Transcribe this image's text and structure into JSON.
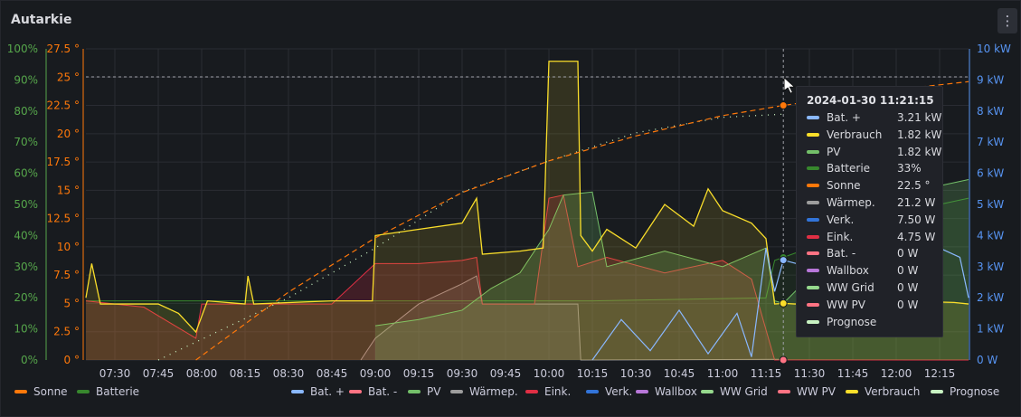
{
  "panel": {
    "title": "Autarkie",
    "menu_icon": "kebab-menu-icon"
  },
  "chart_data": {
    "type": "area",
    "title": "Autarkie",
    "x": {
      "range": [
        "07:20",
        "12:25"
      ],
      "tick_labels": [
        "07:30",
        "07:45",
        "08:00",
        "08:15",
        "08:30",
        "08:45",
        "09:00",
        "09:15",
        "09:30",
        "09:45",
        "10:00",
        "10:15",
        "10:30",
        "10:45",
        "11:00",
        "11:15",
        "11:30",
        "11:45",
        "12:00",
        "12:15"
      ]
    },
    "axes": {
      "percent": {
        "side": "left-outer",
        "color": "#56a64b",
        "range": [
          0,
          100
        ],
        "ticks": [
          "0%",
          "10%",
          "20%",
          "30%",
          "40%",
          "50%",
          "60%",
          "70%",
          "80%",
          "90%",
          "100%"
        ]
      },
      "degrees": {
        "side": "left-inner",
        "color": "#ff780a",
        "range": [
          0,
          27.5
        ],
        "ticks": [
          "0 °",
          "2.5 °",
          "5 °",
          "7.5 °",
          "10 °",
          "12.5 °",
          "15 °",
          "17.5 °",
          "20 °",
          "22.5 °",
          "25 °",
          "27.5 °"
        ]
      },
      "power": {
        "side": "right",
        "color": "#5794f2",
        "range": [
          0,
          10
        ],
        "ticks": [
          "0 W",
          "1 kW",
          "2 kW",
          "3 kW",
          "4 kW",
          "5 kW",
          "6 kW",
          "7 kW",
          "8 kW",
          "9 kW",
          "10 kW"
        ]
      }
    },
    "grid": true,
    "legend_placement": "bottom",
    "series": [
      {
        "name": "Verbrauch",
        "unit": "kW",
        "color": "#fade2a",
        "points": [
          [
            "07:20",
            2.0
          ],
          [
            "07:22",
            3.1
          ],
          [
            "07:25",
            1.8
          ],
          [
            "07:45",
            1.8
          ],
          [
            "07:52",
            1.5
          ],
          [
            "07:58",
            0.9
          ],
          [
            "08:02",
            1.9
          ],
          [
            "08:15",
            1.8
          ],
          [
            "08:16",
            2.7
          ],
          [
            "08:18",
            1.8
          ],
          [
            "08:45",
            1.9
          ],
          [
            "08:59",
            1.9
          ],
          [
            "09:00",
            4.0
          ],
          [
            "09:15",
            4.2
          ],
          [
            "09:30",
            4.4
          ],
          [
            "09:35",
            5.2
          ],
          [
            "09:37",
            3.4
          ],
          [
            "09:50",
            3.5
          ],
          [
            "09:58",
            3.6
          ],
          [
            "10:00",
            9.6
          ],
          [
            "10:10",
            9.6
          ],
          [
            "10:11",
            4.0
          ],
          [
            "10:15",
            3.5
          ],
          [
            "10:20",
            4.2
          ],
          [
            "10:30",
            3.6
          ],
          [
            "10:40",
            5.0
          ],
          [
            "10:50",
            4.3
          ],
          [
            "10:55",
            5.5
          ],
          [
            "11:00",
            4.8
          ],
          [
            "11:10",
            4.4
          ],
          [
            "11:15",
            3.9
          ],
          [
            "11:18",
            1.8
          ],
          [
            "11:21",
            1.82
          ],
          [
            "11:25",
            1.8
          ],
          [
            "12:00",
            1.9
          ],
          [
            "12:20",
            1.85
          ],
          [
            "12:25",
            1.8
          ]
        ]
      },
      {
        "name": "PV",
        "unit": "kW",
        "color": "#73bf69",
        "points": [
          [
            "09:00",
            1.1
          ],
          [
            "09:15",
            1.3
          ],
          [
            "09:30",
            1.6
          ],
          [
            "09:40",
            2.3
          ],
          [
            "09:50",
            2.8
          ],
          [
            "10:00",
            4.2
          ],
          [
            "10:05",
            5.3
          ],
          [
            "10:15",
            5.4
          ],
          [
            "10:20",
            3.0
          ],
          [
            "10:40",
            3.5
          ],
          [
            "11:00",
            3.0
          ],
          [
            "11:15",
            3.6
          ],
          [
            "11:18",
            1.9
          ],
          [
            "11:21",
            1.82
          ],
          [
            "11:40",
            3.6
          ],
          [
            "12:00",
            5.2
          ],
          [
            "12:15",
            5.6
          ],
          [
            "12:25",
            5.8
          ]
        ]
      },
      {
        "name": "Eink.",
        "unit": "W",
        "color": "#e02f44",
        "points": [
          [
            "07:20",
            1900
          ],
          [
            "07:40",
            1700
          ],
          [
            "07:58",
            700
          ],
          [
            "08:00",
            1800
          ],
          [
            "08:15",
            1800
          ],
          [
            "08:45",
            1800
          ],
          [
            "09:00",
            3100
          ],
          [
            "09:15",
            3100
          ],
          [
            "09:30",
            3200
          ],
          [
            "09:35",
            3300
          ],
          [
            "09:37",
            1800
          ],
          [
            "09:55",
            1800
          ],
          [
            "10:00",
            5200
          ],
          [
            "10:05",
            5300
          ],
          [
            "10:10",
            3000
          ],
          [
            "10:20",
            3300
          ],
          [
            "10:40",
            2800
          ],
          [
            "11:00",
            3200
          ],
          [
            "11:10",
            2600
          ],
          [
            "11:18",
            0
          ],
          [
            "11:21",
            4.75
          ],
          [
            "12:25",
            0
          ]
        ]
      },
      {
        "name": "Wärmep.",
        "unit": "W",
        "color": "#9d9d9d",
        "points": [
          [
            "08:55",
            0
          ],
          [
            "09:00",
            700
          ],
          [
            "09:15",
            1800
          ],
          [
            "09:30",
            2450
          ],
          [
            "09:35",
            2700
          ],
          [
            "09:37",
            1800
          ],
          [
            "09:55",
            1800
          ],
          [
            "10:00",
            1800
          ],
          [
            "10:10",
            1800
          ],
          [
            "10:11",
            0
          ],
          [
            "11:21",
            21.2
          ]
        ]
      },
      {
        "name": "Bat. +",
        "unit": "kW",
        "color": "#8ab8ff",
        "points": [
          [
            "10:15",
            0
          ],
          [
            "10:25",
            1.3
          ],
          [
            "10:35",
            0.3
          ],
          [
            "10:45",
            1.6
          ],
          [
            "10:55",
            0.2
          ],
          [
            "11:05",
            1.5
          ],
          [
            "11:10",
            0.1
          ],
          [
            "11:15",
            3.6
          ],
          [
            "11:18",
            2.2
          ],
          [
            "11:21",
            3.21
          ],
          [
            "12:10",
            2.0
          ],
          [
            "12:15",
            3.6
          ],
          [
            "12:22",
            3.3
          ],
          [
            "12:25",
            2.0
          ]
        ]
      },
      {
        "name": "Verk.",
        "unit": "W",
        "color": "#3274d9",
        "points": [
          [
            "11:21",
            7.5
          ]
        ]
      },
      {
        "name": "Bat. -",
        "unit": "W",
        "color": "#ff7383",
        "points": [
          [
            "11:21",
            0
          ]
        ]
      },
      {
        "name": "Wallbox",
        "unit": "W",
        "color": "#b877d9",
        "points": [
          [
            "11:21",
            0
          ]
        ]
      },
      {
        "name": "WW Grid",
        "unit": "W",
        "color": "#96d98d",
        "points": [
          [
            "11:21",
            0
          ]
        ]
      },
      {
        "name": "WW PV",
        "unit": "W",
        "color": "#ff7383",
        "points": [
          [
            "11:21",
            0
          ]
        ]
      },
      {
        "name": "Prognose",
        "unit": "kW",
        "color": "#c8f2c2",
        "points": [
          [
            "07:45",
            0
          ],
          [
            "08:30",
            2.0
          ],
          [
            "09:00",
            3.6
          ],
          [
            "09:30",
            5.4
          ],
          [
            "10:00",
            6.4
          ],
          [
            "10:30",
            7.3
          ],
          [
            "11:00",
            7.8
          ],
          [
            "11:21",
            7.9
          ]
        ]
      },
      {
        "name": "Sonne",
        "unit": "°",
        "color": "#ff780a",
        "points": [
          [
            "07:58",
            0
          ],
          [
            "08:30",
            6.0
          ],
          [
            "09:00",
            10.8
          ],
          [
            "09:30",
            14.8
          ],
          [
            "10:00",
            17.6
          ],
          [
            "10:30",
            19.8
          ],
          [
            "11:00",
            21.6
          ],
          [
            "11:21",
            22.5
          ],
          [
            "12:00",
            23.9
          ],
          [
            "12:25",
            24.6
          ]
        ]
      },
      {
        "name": "Batterie",
        "unit": "%",
        "color": "#37872d",
        "points": [
          [
            "07:20",
            19
          ],
          [
            "10:10",
            19
          ],
          [
            "10:15",
            19
          ],
          [
            "11:15",
            20
          ],
          [
            "11:18",
            32
          ],
          [
            "11:21",
            33
          ],
          [
            "12:00",
            46
          ],
          [
            "12:15",
            50
          ],
          [
            "12:25",
            52
          ]
        ]
      }
    ]
  },
  "tooltip": {
    "time": "2024-01-30 11:21:15",
    "rows": [
      {
        "name": "Bat. +",
        "value": "3.21 kW",
        "color": "#8ab8ff"
      },
      {
        "name": "Verbrauch",
        "value": "1.82 kW",
        "color": "#fade2a"
      },
      {
        "name": "PV",
        "value": "1.82 kW",
        "color": "#73bf69"
      },
      {
        "name": "Batterie",
        "value": "33%",
        "color": "#37872d"
      },
      {
        "name": "Sonne",
        "value": "22.5 °",
        "color": "#ff780a"
      },
      {
        "name": "Wärmep.",
        "value": "21.2 W",
        "color": "#9d9d9d"
      },
      {
        "name": "Verk.",
        "value": "7.50 W",
        "color": "#3274d9"
      },
      {
        "name": "Eink.",
        "value": "4.75 W",
        "color": "#e02f44"
      },
      {
        "name": "Bat. -",
        "value": "0 W",
        "color": "#ff7383"
      },
      {
        "name": "Wallbox",
        "value": "0 W",
        "color": "#b877d9"
      },
      {
        "name": "WW Grid",
        "value": "0 W",
        "color": "#96d98d"
      },
      {
        "name": "WW PV",
        "value": "0 W",
        "color": "#ff7383"
      },
      {
        "name": "Prognose",
        "value": "",
        "color": "#c8f2c2"
      }
    ]
  },
  "legend_left": [
    {
      "name": "Sonne",
      "color": "#ff780a"
    },
    {
      "name": "Batterie",
      "color": "#37872d"
    }
  ],
  "legend_right": [
    {
      "name": "Bat. +",
      "color": "#8ab8ff"
    },
    {
      "name": "Bat. -",
      "color": "#ff7383"
    },
    {
      "name": "PV",
      "color": "#73bf69"
    },
    {
      "name": "Wärmep.",
      "color": "#9d9d9d"
    },
    {
      "name": "Eink.",
      "color": "#e02f44"
    },
    {
      "name": "Verk.",
      "color": "#3274d9"
    },
    {
      "name": "Wallbox",
      "color": "#b877d9"
    },
    {
      "name": "WW Grid",
      "color": "#96d98d"
    },
    {
      "name": "WW PV",
      "color": "#ff7383"
    },
    {
      "name": "Verbrauch",
      "color": "#fade2a"
    },
    {
      "name": "Prognose",
      "color": "#c8f2c2"
    }
  ]
}
